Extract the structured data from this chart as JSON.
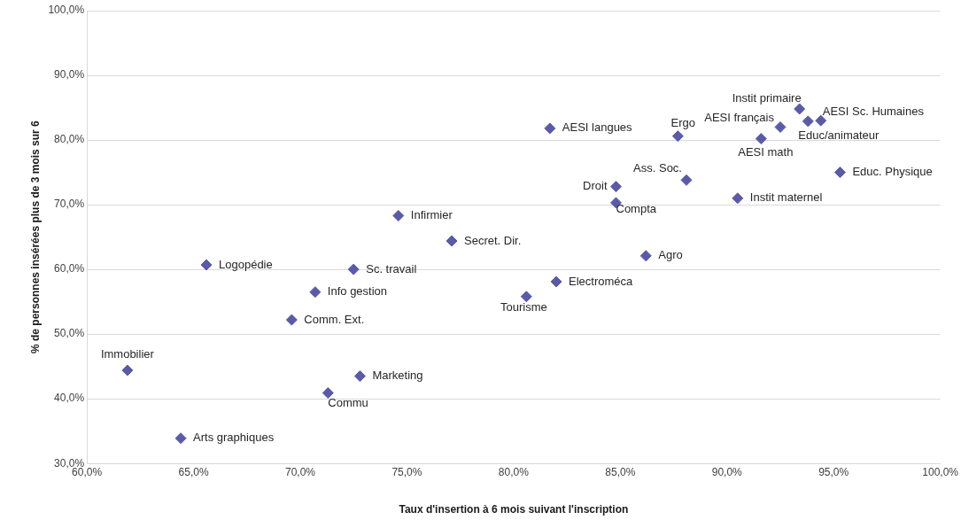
{
  "chart_data": {
    "type": "scatter",
    "xlabel": "Taux d'insertion à 6 mois suivant l'inscription",
    "ylabel": "% de personnes insérées plus de 3 mois sur 6",
    "series": [
      {
        "color": "#5a5ba8",
        "x": [
          61.9,
          64.4,
          65.6,
          69.6,
          70.7,
          72.5,
          71.3,
          72.8,
          74.6,
          77.1,
          80.6,
          82.0,
          81.7,
          84.8,
          84.8,
          86.2,
          87.7,
          88.1,
          90.5,
          91.6,
          92.5,
          93.4,
          93.8,
          94.4,
          95.3
        ],
        "values": [
          44.4,
          33.9,
          60.7,
          52.2,
          56.5,
          60.0,
          40.9,
          43.5,
          68.3,
          64.4,
          55.8,
          58.1,
          81.8,
          72.8,
          70.3,
          62.1,
          80.6,
          73.8,
          71.0,
          80.2,
          82.0,
          84.8,
          82.9,
          83.0,
          75.0
        ]
      }
    ],
    "annotations": [
      {
        "text": "Immobilier",
        "x": 61.9,
        "y": 44.4
      },
      {
        "text": "Arts graphiques",
        "x": 64.4,
        "y": 33.9
      },
      {
        "text": "Logopédie",
        "x": 65.6,
        "y": 60.7
      },
      {
        "text": "Comm. Ext.",
        "x": 69.6,
        "y": 52.2
      },
      {
        "text": "Info gestion",
        "x": 70.7,
        "y": 56.5
      },
      {
        "text": "Sc. travail",
        "x": 72.5,
        "y": 60.0
      },
      {
        "text": "Commu",
        "x": 71.3,
        "y": 40.9
      },
      {
        "text": "Marketing",
        "x": 72.8,
        "y": 43.5
      },
      {
        "text": "Infirmier",
        "x": 74.6,
        "y": 68.3
      },
      {
        "text": "Secret. Dir.",
        "x": 77.1,
        "y": 64.4
      },
      {
        "text": "Tourisme",
        "x": 80.6,
        "y": 55.8
      },
      {
        "text": "Electroméca",
        "x": 82.0,
        "y": 58.1
      },
      {
        "text": "AESI langues",
        "x": 81.7,
        "y": 81.8
      },
      {
        "text": "Droit",
        "x": 84.8,
        "y": 72.8
      },
      {
        "text": "Compta",
        "x": 84.8,
        "y": 70.3
      },
      {
        "text": "Agro",
        "x": 86.2,
        "y": 62.1
      },
      {
        "text": "Ergo",
        "x": 87.7,
        "y": 80.6
      },
      {
        "text": "Ass. Soc.",
        "x": 88.1,
        "y": 73.8
      },
      {
        "text": "Instit maternel",
        "x": 90.5,
        "y": 71.0
      },
      {
        "text": "AESI math",
        "x": 91.6,
        "y": 80.2
      },
      {
        "text": "AESI français",
        "x": 92.5,
        "y": 82.0
      },
      {
        "text": "Instit primaire",
        "x": 93.4,
        "y": 84.8
      },
      {
        "text": "Educ/animateur",
        "x": 93.8,
        "y": 82.9
      },
      {
        "text": "AESI Sc. Humaines",
        "x": 94.4,
        "y": 83.0
      },
      {
        "text": "Educ. Physique",
        "x": 95.3,
        "y": 75.0
      }
    ],
    "xlim": [
      60,
      100
    ],
    "ylim": [
      30,
      100
    ],
    "xticks": [
      {
        "value": 60,
        "label": "60,0%"
      },
      {
        "value": 65,
        "label": "65,0%"
      },
      {
        "value": 70,
        "label": "70,0%"
      },
      {
        "value": 75,
        "label": "75,0%"
      },
      {
        "value": 80,
        "label": "80,0%"
      },
      {
        "value": 85,
        "label": "85,0%"
      },
      {
        "value": 90,
        "label": "90,0%"
      },
      {
        "value": 95,
        "label": "95,0%"
      },
      {
        "value": 100,
        "label": "100,0%"
      }
    ],
    "yticks": [
      {
        "value": 30,
        "label": "30,0%"
      },
      {
        "value": 40,
        "label": "40,0%"
      },
      {
        "value": 50,
        "label": "50,0%"
      },
      {
        "value": 60,
        "label": "60,0%"
      },
      {
        "value": 70,
        "label": "70,0%"
      },
      {
        "value": 80,
        "label": "80,0%"
      },
      {
        "value": 90,
        "label": "90,0%"
      },
      {
        "value": 100,
        "label": "100,0%"
      }
    ],
    "grid": "y",
    "marker": "diamond",
    "legend": false
  }
}
